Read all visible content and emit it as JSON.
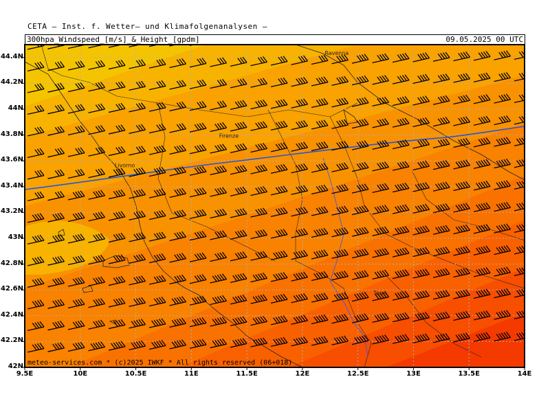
{
  "header": {
    "institute": "CETA — Inst. f. Wetter— und Klimafolgenanalysen —",
    "title": "300hpa_Windspeed_[m/s]_&_Height_[gpdm]",
    "datetime": "09.05.2025 00 UTC"
  },
  "footer": {
    "copyright": "meteo-services.com * (c)2025 IWKF * All rights reserved (06+018)"
  },
  "map": {
    "lon_range": [
      9.5,
      14.0
    ],
    "lat_range": [
      42.0,
      44.5
    ],
    "lon_ticks": [
      {
        "value": 9.5,
        "label": "9.5E"
      },
      {
        "value": 10.0,
        "label": "10E"
      },
      {
        "value": 10.5,
        "label": "10.5E"
      },
      {
        "value": 11.0,
        "label": "11E"
      },
      {
        "value": 11.5,
        "label": "11.5E"
      },
      {
        "value": 12.0,
        "label": "12E"
      },
      {
        "value": 12.5,
        "label": "12.5E"
      },
      {
        "value": 13.0,
        "label": "13E"
      },
      {
        "value": 13.5,
        "label": "13.5E"
      },
      {
        "value": 14.0,
        "label": "14E"
      }
    ],
    "lat_ticks": [
      {
        "value": 44.4,
        "label": "44.4N"
      },
      {
        "value": 44.2,
        "label": "44.2N"
      },
      {
        "value": 44.0,
        "label": "44N"
      },
      {
        "value": 43.8,
        "label": "43.8N"
      },
      {
        "value": 43.6,
        "label": "43.6N"
      },
      {
        "value": 43.4,
        "label": "43.4N"
      },
      {
        "value": 43.2,
        "label": "43.2N"
      },
      {
        "value": 43.0,
        "label": "43N"
      },
      {
        "value": 42.8,
        "label": "42.8N"
      },
      {
        "value": 42.6,
        "label": "42.6N"
      },
      {
        "value": 42.4,
        "label": "42.4N"
      },
      {
        "value": 42.2,
        "label": "42.2N"
      },
      {
        "value": 42.0,
        "label": "42N"
      }
    ],
    "cities": [
      {
        "name": "Ravenna",
        "lon": 12.2,
        "lat": 44.42
      },
      {
        "name": "Firenze",
        "lon": 11.25,
        "lat": 43.78
      },
      {
        "name": "Livorno",
        "lon": 10.31,
        "lat": 43.55
      },
      {
        "name": "Terni",
        "lon": 12.64,
        "lat": 42.56
      }
    ],
    "colors": {
      "bands": [
        "#f5c400",
        "#f7b300",
        "#f9a200",
        "#f99200",
        "#f98200",
        "#f97200",
        "#f96100",
        "#f74e00",
        "#f53a00"
      ],
      "contour": "#2255dd",
      "barb": "#000000",
      "coast": "#222222",
      "grid": "#b0b0b0"
    }
  }
}
